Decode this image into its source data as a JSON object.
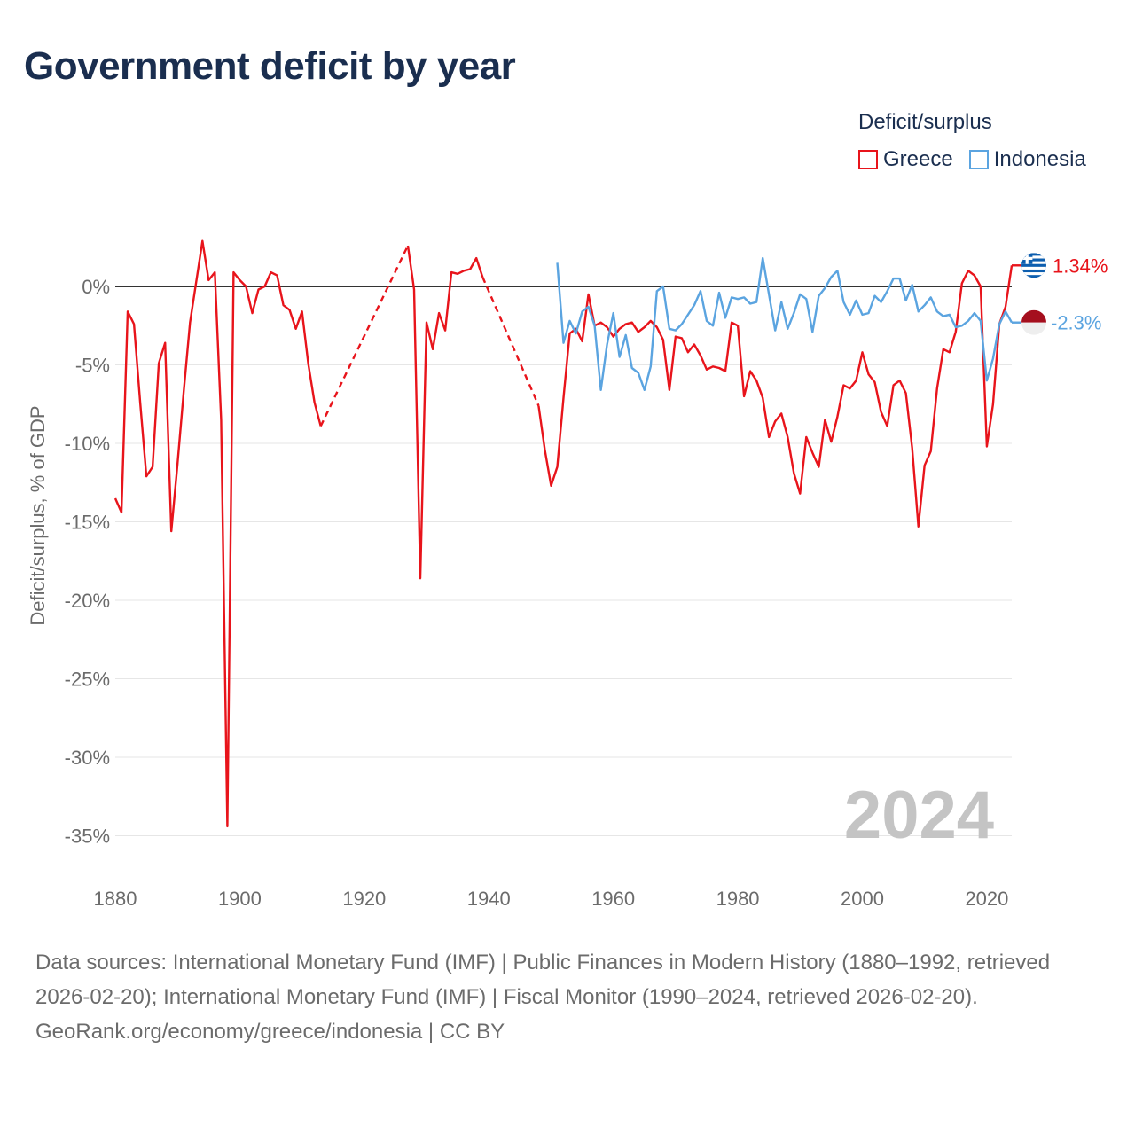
{
  "title": "Government deficit by year",
  "legend": {
    "title": "Deficit/surplus",
    "items": [
      {
        "name": "Greece",
        "color": "#e8141b"
      },
      {
        "name": "Indonesia",
        "color": "#5ba4e0"
      }
    ]
  },
  "footer": {
    "sources": "Data sources: International Monetary Fund (IMF) | Public Finances in Modern History (1880–1992, retrieved 2026-02-20); International Monetary Fund (IMF) | Fiscal Monitor (1990–2024, retrieved 2026-02-20).",
    "credit": "GeoRank.org/economy/greece/indonesia | CC BY"
  },
  "chart_data": {
    "type": "line",
    "title": "Government deficit by year",
    "xlabel": "",
    "ylabel": "Deficit/surplus, % of GDP",
    "xlim": [
      1880,
      2024
    ],
    "ylim": [
      -35,
      2
    ],
    "x_ticks": [
      1880,
      1900,
      1920,
      1940,
      1960,
      1980,
      2000,
      2020
    ],
    "y_ticks": [
      0,
      -5,
      -10,
      -15,
      -20,
      -25,
      -30,
      -35
    ],
    "y_tick_labels": [
      "0%",
      "-5%",
      "-10%",
      "-15%",
      "-20%",
      "-25%",
      "-30%",
      "-35%"
    ],
    "year_label": "2024",
    "gap_style": "dashed",
    "series": [
      {
        "name": "Greece",
        "color": "#e8141b",
        "end_label": "1.34%",
        "end_flag": "greece-flag",
        "x": [
          1880,
          1881,
          1882,
          1883,
          1884,
          1885,
          1886,
          1887,
          1888,
          1889,
          1890,
          1891,
          1892,
          1893,
          1894,
          1895,
          1896,
          1897,
          1898,
          1899,
          1900,
          1901,
          1902,
          1903,
          1904,
          1905,
          1906,
          1907,
          1908,
          1909,
          1910,
          1911,
          1912,
          1913,
          1927,
          1928,
          1929,
          1930,
          1931,
          1932,
          1933,
          1934,
          1935,
          1936,
          1937,
          1938,
          1939,
          1948,
          1949,
          1950,
          1951,
          1952,
          1953,
          1954,
          1955,
          1956,
          1957,
          1958,
          1959,
          1960,
          1961,
          1962,
          1963,
          1964,
          1965,
          1966,
          1967,
          1968,
          1969,
          1970,
          1971,
          1972,
          1973,
          1974,
          1975,
          1976,
          1977,
          1978,
          1979,
          1980,
          1981,
          1982,
          1983,
          1984,
          1985,
          1986,
          1987,
          1988,
          1989,
          1990,
          1991,
          1992,
          1993,
          1994,
          1995,
          1996,
          1997,
          1998,
          1999,
          2000,
          2001,
          2002,
          2003,
          2004,
          2005,
          2006,
          2007,
          2008,
          2009,
          2010,
          2011,
          2012,
          2013,
          2014,
          2015,
          2016,
          2017,
          2018,
          2019,
          2020,
          2021,
          2022,
          2023,
          2024
        ],
        "y": [
          -13.5,
          -14.4,
          -1.6,
          -2.4,
          -7.4,
          -12.1,
          -11.5,
          -4.9,
          -3.6,
          -15.6,
          -11.3,
          -6.7,
          -2.3,
          0.3,
          2.9,
          0.4,
          0.9,
          -8.5,
          -34.4,
          0.9,
          0.4,
          0.0,
          -1.7,
          -0.2,
          0.0,
          0.9,
          0.7,
          -1.2,
          -1.5,
          -2.7,
          -1.6,
          -4.9,
          -7.4,
          -8.9,
          2.6,
          -0.2,
          -18.6,
          -2.3,
          -4.0,
          -1.7,
          -2.8,
          0.9,
          0.8,
          1.0,
          1.1,
          1.8,
          0.6,
          -7.6,
          -10.4,
          -12.7,
          -11.5,
          -7.1,
          -3.0,
          -2.7,
          -3.5,
          -0.5,
          -2.5,
          -2.3,
          -2.6,
          -3.2,
          -2.7,
          -2.4,
          -2.3,
          -2.9,
          -2.6,
          -2.2,
          -2.6,
          -3.4,
          -6.6,
          -3.2,
          -3.3,
          -4.2,
          -3.7,
          -4.4,
          -5.3,
          -5.1,
          -5.2,
          -5.4,
          -2.3,
          -2.5,
          -7.0,
          -5.4,
          -6.0,
          -7.1,
          -9.6,
          -8.6,
          -8.1,
          -9.6,
          -11.9,
          -13.2,
          -9.6,
          -10.6,
          -11.5,
          -8.5,
          -9.9,
          -8.3,
          -6.3,
          -6.5,
          -6.0,
          -4.2,
          -5.6,
          -6.1,
          -8.0,
          -8.9,
          -6.3,
          -6.0,
          -6.8,
          -10.3,
          -15.3,
          -11.4,
          -10.5,
          -6.5,
          -4.0,
          -4.2,
          -2.9,
          0.2,
          1.0,
          0.7,
          0.0,
          -10.2,
          -7.5,
          -2.4,
          -1.3,
          1.34
        ]
      },
      {
        "name": "Indonesia",
        "color": "#5ba4e0",
        "end_label": "-2.3%",
        "end_flag": "indonesia-flag",
        "x": [
          1951,
          1952,
          1953,
          1954,
          1955,
          1956,
          1957,
          1958,
          1959,
          1960,
          1961,
          1962,
          1963,
          1964,
          1965,
          1966,
          1967,
          1968,
          1969,
          1970,
          1971,
          1972,
          1973,
          1974,
          1975,
          1976,
          1977,
          1978,
          1979,
          1980,
          1981,
          1982,
          1983,
          1984,
          1985,
          1986,
          1987,
          1988,
          1989,
          1990,
          1991,
          1992,
          1993,
          1994,
          1995,
          1996,
          1997,
          1998,
          1999,
          2000,
          2001,
          2002,
          2003,
          2004,
          2005,
          2006,
          2007,
          2008,
          2009,
          2010,
          2011,
          2012,
          2013,
          2014,
          2015,
          2016,
          2017,
          2018,
          2019,
          2020,
          2021,
          2022,
          2023,
          2024
        ],
        "y": [
          1.5,
          -3.6,
          -2.2,
          -3.0,
          -1.6,
          -1.3,
          -2.5,
          -6.6,
          -3.7,
          -1.7,
          -4.5,
          -3.1,
          -5.2,
          -5.5,
          -6.6,
          -5.1,
          -0.3,
          0.0,
          -2.7,
          -2.8,
          -2.4,
          -1.8,
          -1.2,
          -0.3,
          -2.2,
          -2.5,
          -0.4,
          -2.0,
          -0.7,
          -0.8,
          -0.7,
          -1.1,
          -1.0,
          1.8,
          -0.5,
          -2.8,
          -1.0,
          -2.7,
          -1.7,
          -0.5,
          -0.8,
          -2.9,
          -0.6,
          -0.1,
          0.6,
          1.0,
          -1.0,
          -1.8,
          -0.9,
          -1.8,
          -1.7,
          -0.6,
          -1.0,
          -0.3,
          0.5,
          0.5,
          -0.9,
          0.1,
          -1.6,
          -1.2,
          -0.7,
          -1.6,
          -1.9,
          -1.8,
          -2.6,
          -2.5,
          -2.2,
          -1.7,
          -2.2,
          -6.0,
          -4.6,
          -2.4,
          -1.6,
          -2.3
        ]
      }
    ]
  }
}
